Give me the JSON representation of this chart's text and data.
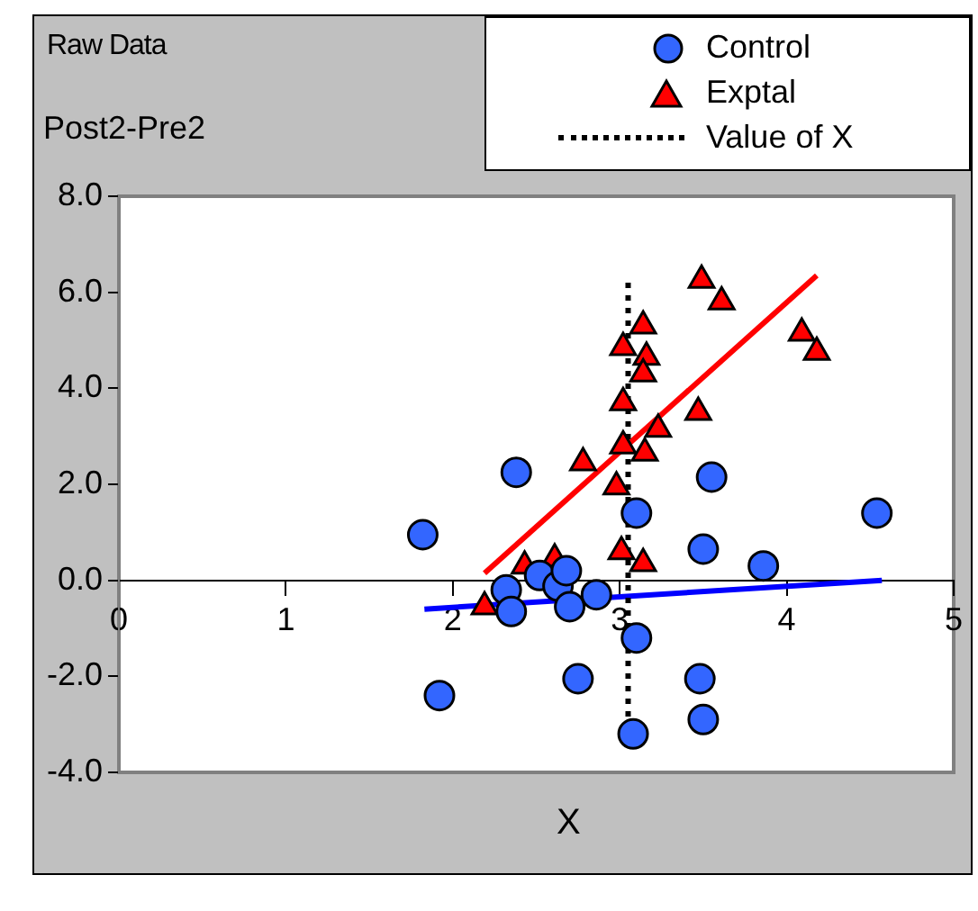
{
  "chart_data": {
    "type": "scatter",
    "title": "Raw Data",
    "ylabel": "Post2-Pre2",
    "xlabel": "X",
    "xlim": [
      0,
      5
    ],
    "xticks": [
      0,
      1,
      2,
      3,
      4,
      5
    ],
    "ylim": [
      -4,
      8
    ],
    "yticks": [
      {
        "value": -4,
        "label": "-4.0"
      },
      {
        "value": -2,
        "label": "-2.0"
      },
      {
        "value": 0,
        "label": "0.0"
      },
      {
        "value": 2,
        "label": "2.0"
      },
      {
        "value": 4,
        "label": "4.0"
      },
      {
        "value": 6,
        "label": "6.0"
      },
      {
        "value": 8,
        "label": "8.0"
      }
    ],
    "grid": false,
    "legend": "top right",
    "series": [
      {
        "name": "Control",
        "marker": "circle",
        "color": "#3366ff",
        "x": [
          1.82,
          1.92,
          2.38,
          2.32,
          2.35,
          2.52,
          2.63,
          2.68,
          2.7,
          2.75,
          2.86,
          3.1,
          3.1,
          3.08,
          3.5,
          3.48,
          3.5,
          3.55,
          3.86,
          4.54
        ],
        "values": [
          0.95,
          -2.4,
          2.25,
          -0.2,
          -0.65,
          0.1,
          -0.12,
          0.2,
          -0.55,
          -2.05,
          -0.3,
          1.4,
          -1.2,
          -3.2,
          0.65,
          -2.05,
          -2.9,
          2.15,
          0.3,
          1.4
        ]
      },
      {
        "name": "Exptal",
        "marker": "triangle",
        "color": "#ff0000",
        "x": [
          2.19,
          2.43,
          2.61,
          2.78,
          2.98,
          3.01,
          3.14,
          3.02,
          3.14,
          3.16,
          3.14,
          3.02,
          3.02,
          3.15,
          3.23,
          3.47,
          3.49,
          3.61,
          4.09,
          4.18
        ],
        "values": [
          -0.55,
          0.3,
          0.45,
          2.45,
          1.95,
          0.6,
          0.35,
          4.85,
          5.3,
          4.65,
          4.3,
          3.7,
          2.8,
          2.65,
          3.15,
          3.5,
          6.25,
          5.8,
          5.15,
          4.75
        ]
      },
      {
        "name": "Value of X",
        "type": "line",
        "marker": "none",
        "line_style": "dotted",
        "color": "#000000",
        "x": [
          3.05,
          3.05
        ],
        "values": [
          6.2,
          -3.5
        ]
      },
      {
        "type": "line",
        "marker": "none",
        "line_style": "solid",
        "color": "#ff0000",
        "x": [
          2.19,
          4.18
        ],
        "values": [
          0.15,
          6.35
        ]
      },
      {
        "type": "line",
        "marker": "none",
        "line_style": "solid",
        "color": "#0000ff",
        "x": [
          1.83,
          4.57
        ],
        "values": [
          -0.6,
          0.0
        ]
      }
    ]
  }
}
